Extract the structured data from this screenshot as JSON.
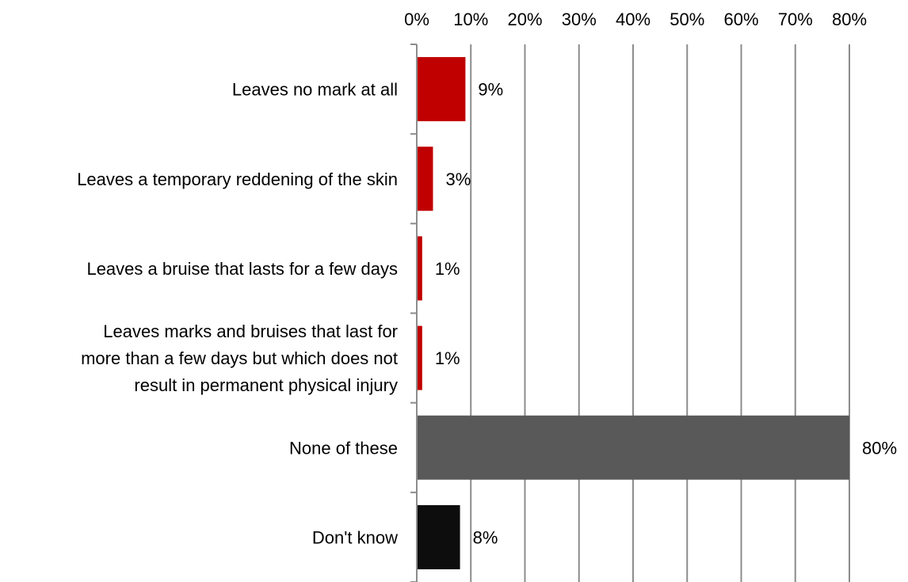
{
  "chart_data": {
    "type": "bar",
    "orientation": "horizontal",
    "title": "",
    "xlabel": "",
    "ylabel": "",
    "xlim": [
      0,
      80
    ],
    "x_ticks": [
      "0%",
      "10%",
      "20%",
      "30%",
      "40%",
      "50%",
      "60%",
      "70%",
      "80%"
    ],
    "x_axis_position": "top",
    "grid": true,
    "legend": "none",
    "categories": [
      [
        "Leaves no mark at all"
      ],
      [
        "Leaves a temporary reddening of the skin"
      ],
      [
        "Leaves a bruise that lasts for a few days"
      ],
      [
        "Leaves marks and bruises that last for",
        "more than a few days but which does not",
        "result in permanent physical injury"
      ],
      [
        "None of these"
      ],
      [
        "Don't know"
      ]
    ],
    "values": [
      9,
      3,
      1,
      1,
      80,
      8
    ],
    "data_labels": [
      "9%",
      "3%",
      "1%",
      "1%",
      "80%",
      "8%"
    ],
    "bar_colors": [
      "#c00000",
      "#c00000",
      "#c00000",
      "#c00000",
      "#595959",
      "#0d0d0d"
    ]
  }
}
